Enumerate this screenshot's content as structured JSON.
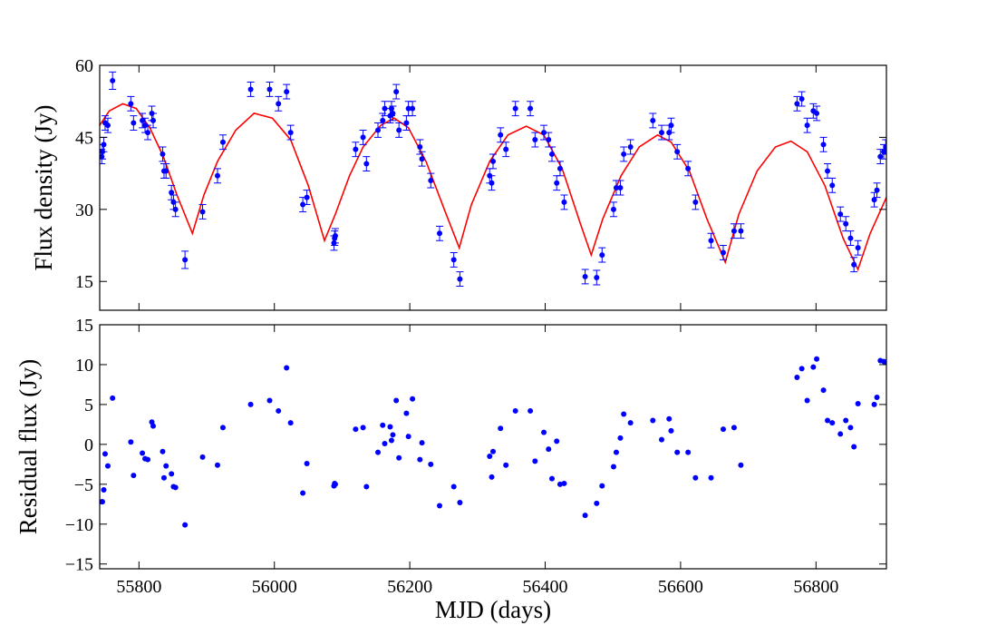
{
  "chart_data": [
    {
      "type": "errorbar",
      "ylabel": "Flux density (Jy)",
      "xlim": [
        55742,
        56904
      ],
      "ylim": [
        9,
        60
      ],
      "xticks": [
        55800,
        56000,
        56200,
        56400,
        56600,
        56800
      ],
      "show_xtick_labels": false,
      "yticks": [
        15,
        30,
        45,
        60
      ],
      "color": "#0000ff",
      "x": [
        55745,
        55746,
        55748,
        55750,
        55754,
        55761,
        55788,
        55792,
        55805,
        55809,
        55813,
        55819,
        55821,
        55835,
        55837,
        55840,
        55848,
        55851,
        55854,
        55868,
        55894,
        55916,
        55924,
        55965,
        55993,
        56006,
        56018,
        56024,
        56042,
        56048,
        56088,
        56089,
        56090,
        56120,
        56131,
        56136,
        56153,
        56160,
        56163,
        56171,
        56173,
        56175,
        56180,
        56184,
        56195,
        56198,
        56204,
        56215,
        56218,
        56231,
        56244,
        56265,
        56274,
        56318,
        56321,
        56323,
        56334,
        56342,
        56356,
        56378,
        56385,
        56398,
        56405,
        56410,
        56417,
        56422,
        56428,
        56459,
        56476,
        56484,
        56501,
        56505,
        56511,
        56516,
        56526,
        56559,
        56572,
        56583,
        56586,
        56595,
        56611,
        56622,
        56645,
        56663,
        56679,
        56689,
        56772,
        56779,
        56787,
        56796,
        56801,
        56811,
        56817,
        56824,
        56836,
        56844,
        56851,
        56856,
        56862,
        56886,
        56890,
        56895,
        56900,
        56903
      ],
      "values": [
        41,
        42,
        43.5,
        48,
        47.5,
        56.8,
        52,
        48,
        48.5,
        47.5,
        46,
        50,
        48.5,
        41.5,
        38,
        38,
        33.5,
        31.5,
        30,
        19.5,
        29.5,
        37,
        44,
        55,
        55,
        52,
        54.5,
        46,
        31,
        32.5,
        23,
        24,
        24.5,
        42.5,
        45,
        39.5,
        46.5,
        48.5,
        51,
        49.5,
        51,
        50,
        54.5,
        46.5,
        48,
        51,
        51,
        43,
        40.5,
        36,
        25,
        19.5,
        15.5,
        37,
        35.5,
        40,
        45.5,
        42.5,
        51,
        51,
        44.5,
        46,
        44.5,
        41.5,
        35.5,
        38.5,
        31.5,
        16,
        15.8,
        20.5,
        30,
        34.5,
        34.5,
        41.5,
        43,
        48.5,
        46,
        46,
        47.5,
        42,
        38.5,
        31.5,
        23.5,
        21,
        25.5,
        25.5,
        52,
        53,
        47.5,
        50.5,
        50,
        43.5,
        38,
        35,
        29,
        27,
        24,
        18.5,
        22,
        32,
        34,
        41,
        42,
        43
      ],
      "errors": [
        1.5,
        1.5,
        1.5,
        1.5,
        1.5,
        1.8,
        1.5,
        1.5,
        1.5,
        1.5,
        1.5,
        1.5,
        1.5,
        1.5,
        1.5,
        1.5,
        1.5,
        1.5,
        1.5,
        1.8,
        1.5,
        1.5,
        1.5,
        1.5,
        1.5,
        1.5,
        1.5,
        1.5,
        1.5,
        1.5,
        1.5,
        1.5,
        1.5,
        1.5,
        1.5,
        1.5,
        1.5,
        1.5,
        1.5,
        1.5,
        1.5,
        1.5,
        1.5,
        1.5,
        1.5,
        1.5,
        1.5,
        1.5,
        1.5,
        1.5,
        1.5,
        1.5,
        1.5,
        1.5,
        1.5,
        1.5,
        1.5,
        1.5,
        1.5,
        1.5,
        1.5,
        1.5,
        1.5,
        1.5,
        1.5,
        1.5,
        1.5,
        1.5,
        1.5,
        1.5,
        1.5,
        1.5,
        1.5,
        1.5,
        1.5,
        1.5,
        1.5,
        1.5,
        1.5,
        1.5,
        1.5,
        1.5,
        1.5,
        1.5,
        1.5,
        1.5,
        1.5,
        1.5,
        1.5,
        1.5,
        1.5,
        1.5,
        1.5,
        1.5,
        1.5,
        1.5,
        1.5,
        1.5,
        1.5,
        1.5,
        1.5,
        1.5,
        1.5,
        1.5
      ],
      "model": {
        "color": "#ff0000",
        "x": [
          55742,
          55756,
          55776,
          55796,
          55816,
          55836,
          55856,
          55879,
          55896,
          55916,
          55943,
          55970,
          55997,
          56024,
          56050,
          56074,
          56090,
          56111,
          56131,
          56157,
          56177,
          56198,
          56224,
          56251,
          56273,
          56291,
          56318,
          56345,
          56372,
          56398,
          56425,
          56452,
          56468,
          56485,
          56512,
          56539,
          56566,
          56586,
          56613,
          56639,
          56666,
          56686,
          56713,
          56740,
          56763,
          56787,
          56813,
          56840,
          56862,
          56880,
          56904
        ],
        "values": [
          47.5,
          50.5,
          52,
          51,
          47,
          41,
          33,
          25,
          33,
          40,
          46.5,
          50,
          49,
          44.5,
          35,
          23.5,
          29,
          37,
          43,
          47.5,
          49,
          47,
          40,
          30,
          22,
          31,
          40,
          45.5,
          47.3,
          45.5,
          38.5,
          27,
          20.5,
          28,
          37,
          43,
          45.5,
          44,
          38,
          28,
          19,
          29,
          38,
          43,
          44.2,
          42,
          35,
          24,
          17.5,
          25,
          32.5
        ]
      }
    },
    {
      "type": "scatter",
      "ylabel": "Residual flux (Jy)",
      "xlabel": "MJD (days)",
      "xlim": [
        55742,
        56904
      ],
      "ylim": [
        -15.6,
        15
      ],
      "xticks": [
        55800,
        56000,
        56200,
        56400,
        56600,
        56800
      ],
      "yticks": [
        {
          "value": -15,
          "label": "−15"
        },
        {
          "value": -10,
          "label": "−10"
        },
        {
          "value": -5,
          "label": "−5"
        },
        0,
        5,
        10,
        15
      ],
      "color": "#0000ff",
      "x": [
        55745,
        55746,
        55748,
        55750,
        55754,
        55761,
        55788,
        55792,
        55805,
        55809,
        55813,
        55819,
        55821,
        55835,
        55837,
        55840,
        55848,
        55851,
        55854,
        55868,
        55894,
        55916,
        55924,
        55965,
        55993,
        56006,
        56018,
        56024,
        56042,
        56048,
        56088,
        56089,
        56090,
        56120,
        56131,
        56136,
        56153,
        56160,
        56163,
        56171,
        56173,
        56175,
        56180,
        56184,
        56195,
        56198,
        56204,
        56215,
        56218,
        56231,
        56244,
        56265,
        56274,
        56318,
        56321,
        56323,
        56334,
        56342,
        56356,
        56378,
        56385,
        56398,
        56405,
        56410,
        56417,
        56422,
        56428,
        56459,
        56476,
        56484,
        56501,
        56505,
        56511,
        56516,
        56526,
        56559,
        56572,
        56583,
        56586,
        56595,
        56611,
        56622,
        56645,
        56663,
        56679,
        56689,
        56772,
        56779,
        56787,
        56796,
        56801,
        56811,
        56817,
        56824,
        56836,
        56844,
        56851,
        56856,
        56862,
        56886,
        56890,
        56895,
        56900,
        56903
      ],
      "values": [
        -7.2,
        -7.2,
        -5.7,
        -1.2,
        -2.7,
        5.8,
        0.3,
        -3.9,
        -1.1,
        -1.8,
        -1.9,
        2.8,
        2.3,
        -0.9,
        -4.2,
        -2.7,
        -3.7,
        -5.3,
        -5.4,
        -10.1,
        -1.6,
        -2.6,
        2.1,
        5,
        5.5,
        4.2,
        9.6,
        2.7,
        -6.1,
        -2.4,
        -5.2,
        -4.9,
        -5,
        1.9,
        2.1,
        -5.3,
        -1,
        2.4,
        0.1,
        2.2,
        0.5,
        1.2,
        5.5,
        -1.7,
        3.9,
        1,
        5.7,
        -1.9,
        0.2,
        -2.5,
        -7.7,
        -5.3,
        -7.3,
        -1.5,
        -4.1,
        -0.9,
        2,
        -2.6,
        4.2,
        4.2,
        -2.1,
        1.5,
        -0.6,
        -4.3,
        0.4,
        -5,
        -4.9,
        -8.9,
        -7.4,
        -5.2,
        -2.8,
        -1,
        0.8,
        3.8,
        2.7,
        3,
        0.6,
        3.2,
        1.7,
        -1,
        -1,
        -4.2,
        -4.2,
        1.9,
        2.1,
        -2.6,
        8.4,
        9.5,
        5.5,
        9.7,
        10.7,
        6.8,
        3,
        2.7,
        1.3,
        3,
        2.1,
        -0.3,
        5.1,
        5,
        5.9,
        10.5,
        10.4,
        10.3
      ]
    }
  ]
}
